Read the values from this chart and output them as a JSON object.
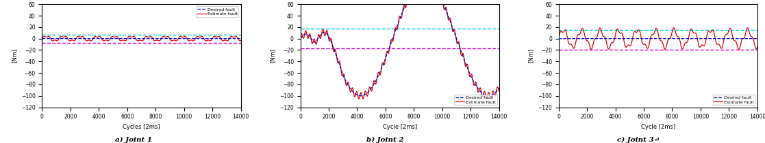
{
  "xlim": [
    0,
    14000
  ],
  "ylim": [
    -120,
    60
  ],
  "yticks": [
    -120,
    -100,
    -80,
    -60,
    -40,
    -20,
    0,
    20,
    40,
    60
  ],
  "xticks": [
    0,
    2000,
    4000,
    6000,
    8000,
    10000,
    12000,
    14000
  ],
  "ylabel": "[Nm]",
  "xlabel1": "Cycles [2ms]",
  "xlabel2": "Cycle [2ms]",
  "subtitle1": "a) Joint 1",
  "subtitle2": "b) Joint 2",
  "subtitle3": "c) Joint 3↵",
  "legend_desired": "Desired fault",
  "legend_estimate": "Estimate fault",
  "desired_color": "#0000cc",
  "estimate_color": "#dd0000",
  "j1_cyan_line": 7,
  "j1_magenta_line": -7,
  "j2_cyan_line": 17,
  "j2_magenta_line": -17,
  "j3_cyan_line": 15,
  "j3_magenta_line": -20,
  "cyan_color": "#00ccdd",
  "magenta_color": "#cc00cc",
  "background": "#ffffff",
  "legend1_loc": "upper right",
  "legend2_loc": "lower right",
  "legend3_loc": "lower right"
}
